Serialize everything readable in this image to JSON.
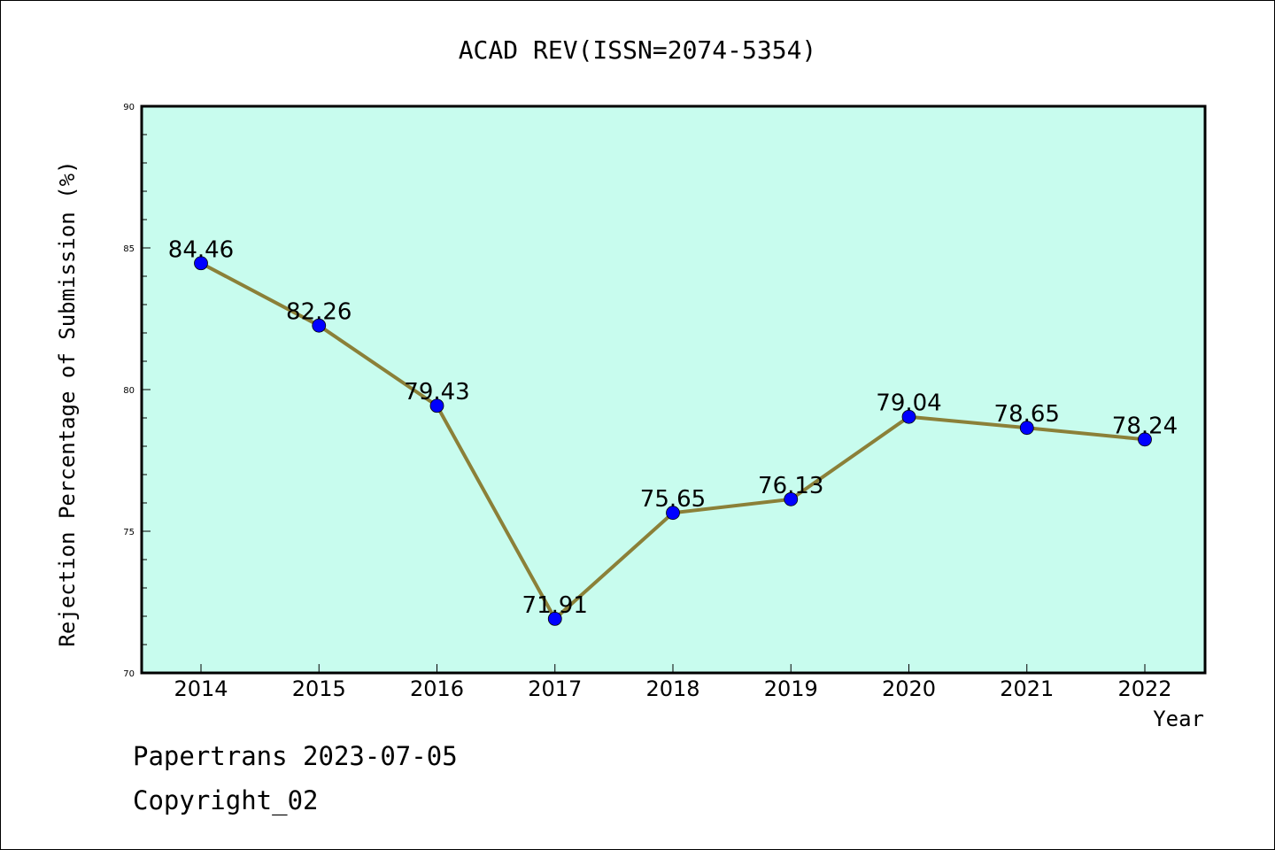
{
  "chart_data": {
    "type": "line",
    "title": "ACAD REV(ISSN=2074-5354)",
    "xlabel": "Year",
    "ylabel": "Rejection Percentage of Submission (%)",
    "categories": [
      "2014",
      "2015",
      "2016",
      "2017",
      "2018",
      "2019",
      "2020",
      "2021",
      "2022"
    ],
    "series": [
      {
        "values": [
          84.46,
          82.26,
          79.43,
          71.91,
          75.65,
          76.13,
          79.04,
          78.65,
          78.24
        ],
        "labels": [
          "84.46",
          "82.26",
          "79.43",
          "71.91",
          "75.65",
          "76.13",
          "79.04",
          "78.65",
          "78.24"
        ]
      }
    ],
    "ylim": [
      70,
      90
    ],
    "yticks": [
      "70",
      "75",
      "80",
      "85",
      "90"
    ],
    "grid": false,
    "colors": {
      "plot_background": "#c8fcee",
      "line": "#8b8038",
      "marker": "#0000ff"
    }
  },
  "footer": {
    "line1": "Papertrans 2023-07-05",
    "line2": "Copyright_02"
  }
}
